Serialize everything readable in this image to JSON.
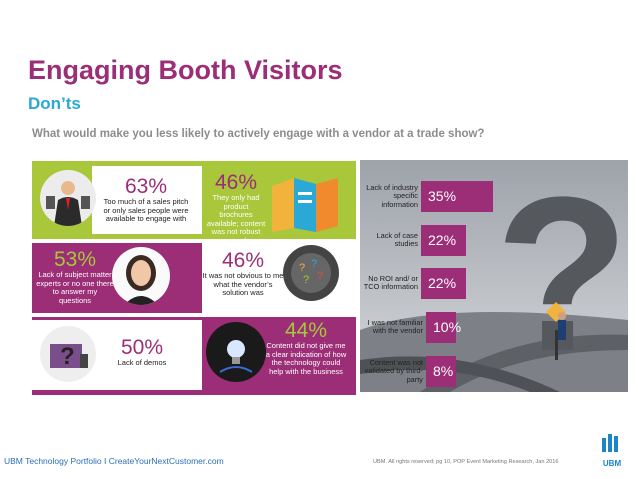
{
  "header": {
    "title": "Engaging Booth Visitors",
    "subtitle": "Don’ts",
    "question": "What would make you less likely to actively engage with a vendor at a trade show?"
  },
  "stats": [
    {
      "pct": "63%",
      "desc": "Too much of a sales pitch or only sales people were available to engage with"
    },
    {
      "pct": "46%",
      "desc": "They only had product brochures available; content was not robust enough"
    },
    {
      "pct": "53%",
      "desc": "Lack of subject matter experts or no one there to answer my questions"
    },
    {
      "pct": "46%",
      "desc": "It was not obvious to me what the vendor’s solution was"
    },
    {
      "pct": "50%",
      "desc": "Lack of demos"
    },
    {
      "pct": "44%",
      "desc": "Content did not give me a clear indication of how the technology could help with the business"
    }
  ],
  "chart_data": {
    "type": "bar",
    "orientation": "horizontal",
    "categories": [
      "Lack of industry specific information",
      "Lack of case studies",
      "No ROI and/ or TCO information",
      "I was not familiar with the vendor",
      "Content was not validated by third-party"
    ],
    "values": [
      35,
      22,
      22,
      10,
      8
    ],
    "value_labels": [
      "35%",
      "22%",
      "22%",
      "10%",
      "8%"
    ]
  },
  "colors": {
    "purple": "#9b2e76",
    "green": "#a8c73a",
    "blue": "#2aa8d6"
  },
  "footer": {
    "left": "UBM Technology Portfolio  I  CreateYourNextCustomer.com",
    "right": "UBM. All rights reserved; pg 10, POP Event Marketing Research, Jan 2016",
    "logo": "UBM"
  }
}
